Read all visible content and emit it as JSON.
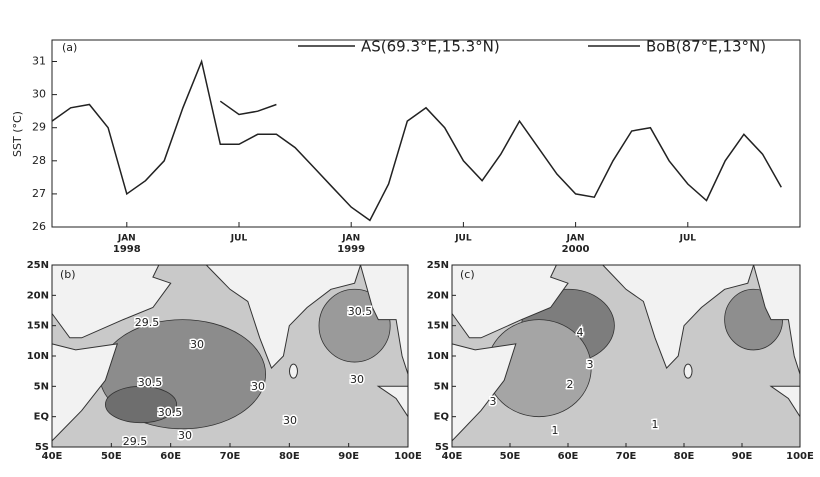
{
  "chart_data": {
    "type": "line",
    "panel_label": "(a)",
    "ylabel": "SST (°C)",
    "x": [
      "1997-09",
      "1997-10",
      "1997-11",
      "1997-12",
      "1998-01",
      "1998-02",
      "1998-03",
      "1998-04",
      "1998-05",
      "1998-06",
      "1998-07",
      "1998-08",
      "1998-09",
      "1998-10",
      "1998-11",
      "1998-12",
      "1999-01",
      "1999-02",
      "1999-03",
      "1999-04",
      "1999-05",
      "1999-06",
      "1999-07",
      "1999-08",
      "1999-09",
      "1999-10",
      "1999-11",
      "1999-12",
      "2000-01",
      "2000-02",
      "2000-03",
      "2000-04",
      "2000-05",
      "2000-06",
      "2000-07",
      "2000-08",
      "2000-09",
      "2000-10",
      "2000-11",
      "2000-12"
    ],
    "series": [
      {
        "name": "AS(69.3°E,15.3°N)",
        "color": "#222222",
        "values": [
          29.2,
          29.6,
          29.7,
          29.0,
          27.0,
          27.4,
          28.0,
          29.6,
          31.0,
          28.5,
          28.5,
          28.8,
          28.8,
          28.4,
          27.8,
          27.2,
          26.6,
          26.2,
          27.3,
          29.2,
          29.6,
          29.0,
          28.0,
          27.4,
          28.2,
          29.2,
          28.4,
          27.6,
          27.0,
          26.9,
          28.0,
          28.9,
          29.0,
          28.0,
          27.3,
          26.8,
          28.0,
          28.8,
          28.2,
          27.2
        ]
      },
      {
        "name": "BoB(87°E,13°N)",
        "color": "#222222",
        "values": [
          null,
          null,
          null,
          null,
          null,
          null,
          null,
          null,
          null,
          29.8,
          29.4,
          29.5,
          29.7,
          null,
          null,
          null,
          null,
          null,
          null,
          null,
          null,
          null,
          null,
          null,
          null,
          null,
          null,
          null,
          null,
          null,
          null,
          null,
          null,
          null,
          null,
          null,
          null,
          null,
          null,
          null
        ]
      }
    ],
    "xlim": [
      "1997-09",
      "2001-01"
    ],
    "xticks": [
      {
        "value": "1998-01",
        "label": "JAN"
      },
      {
        "value": "1998-07",
        "label": "JUL"
      },
      {
        "value": "1999-01",
        "label": "JAN"
      },
      {
        "value": "1999-07",
        "label": "JUL"
      },
      {
        "value": "2000-01",
        "label": "JAN"
      },
      {
        "value": "2000-07",
        "label": "JUL"
      }
    ],
    "xtick_years": [
      {
        "value": "1998-01",
        "label": "1998"
      },
      {
        "value": "1999-01",
        "label": "1999"
      },
      {
        "value": "2000-01",
        "label": "2000"
      }
    ],
    "ylim": [
      26,
      31.65
    ],
    "yticks": [
      26,
      27,
      28,
      29,
      30,
      31
    ]
  },
  "maps": [
    {
      "panel_label": "(b)",
      "contour_labels": [
        "29.5",
        "30",
        "30.5",
        "30.5",
        "30",
        "30.5",
        "30",
        "30",
        "29.5",
        "30"
      ]
    },
    {
      "panel_label": "(c)",
      "contour_labels": [
        "4",
        "3",
        "2",
        "3",
        "1",
        "1"
      ]
    }
  ],
  "map_lat_labels": [
    "25N",
    "20N",
    "15N",
    "10N",
    "5N",
    "EQ",
    "5S"
  ],
  "map_lon_labels": [
    "40E",
    "50E",
    "60E",
    "70E",
    "80E",
    "90E",
    "100E"
  ]
}
